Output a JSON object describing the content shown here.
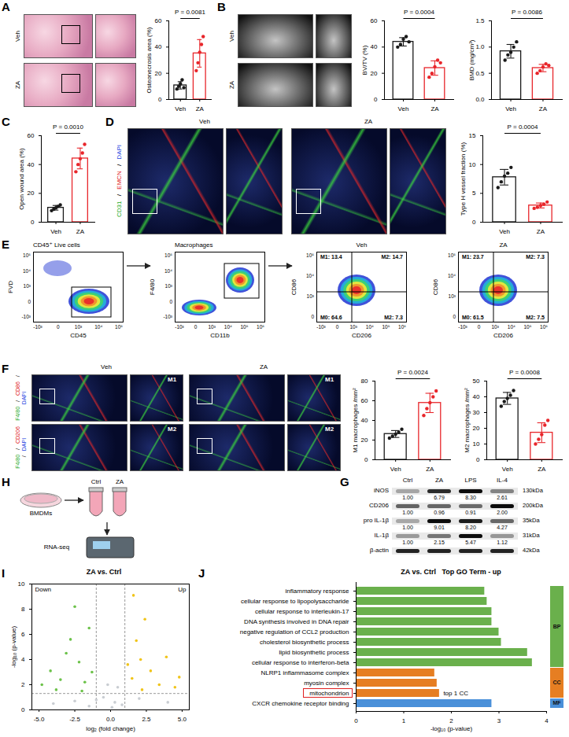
{
  "chart_data": [
    {
      "panel": "A",
      "type": "bar",
      "categories": [
        "Veh",
        "ZA"
      ],
      "values": [
        10.8,
        35.2
      ],
      "errors": [
        2.8,
        10.5
      ],
      "points": [
        [
          8,
          10,
          12,
          15,
          9
        ],
        [
          22,
          28,
          36,
          42,
          48
        ]
      ],
      "colors": [
        "#1a1a1a",
        "#e8262b"
      ],
      "ylabel": "Osteonecrosis area (%)",
      "ylim": [
        0,
        60
      ],
      "yticks": [
        0,
        20,
        40,
        60
      ],
      "annotations": [
        "P = 0.0081"
      ]
    },
    {
      "panel": "B",
      "type": "bar",
      "categories": [
        "Veh",
        "ZA"
      ],
      "values": [
        44,
        24
      ],
      "errors": [
        3.2,
        5.5
      ],
      "points": [
        [
          40,
          42,
          46,
          48,
          44
        ],
        [
          17,
          20,
          25,
          30,
          28
        ]
      ],
      "colors": [
        "#1a1a1a",
        "#e8262b"
      ],
      "ylabel": "BV/TV (%)",
      "ylim": [
        0,
        60
      ],
      "yticks": [
        0,
        20,
        40,
        60
      ],
      "annotations": [
        "P = 0.0004"
      ]
    },
    {
      "panel": "B",
      "type": "bar",
      "categories": [
        "Veh",
        "ZA"
      ],
      "values": [
        0.92,
        0.6
      ],
      "errors": [
        0.13,
        0.07
      ],
      "points": [
        [
          0.75,
          0.85,
          0.9,
          1.0,
          1.1
        ],
        [
          0.5,
          0.55,
          0.62,
          0.68,
          0.65
        ]
      ],
      "colors": [
        "#1a1a1a",
        "#e8262b"
      ],
      "ylabel": "BMD (mg/cm³)",
      "ylim": [
        0,
        1.5
      ],
      "yticks": [
        {
          "value": 0,
          "label": "0.0"
        },
        {
          "value": 0.5,
          "label": "0.5"
        },
        {
          "value": 1,
          "label": "1.0"
        },
        {
          "value": 1.5,
          "label": "1.5"
        }
      ],
      "annotations": [
        "P = 0.0086"
      ]
    },
    {
      "panel": "C",
      "type": "bar",
      "categories": [
        "Veh",
        "ZA"
      ],
      "values": [
        10,
        44.2
      ],
      "errors": [
        1.6,
        7.2
      ],
      "points": [
        [
          8,
          9,
          10,
          11,
          12
        ],
        [
          35,
          40,
          44,
          48,
          54
        ]
      ],
      "colors": [
        "#1a1a1a",
        "#e8262b"
      ],
      "ylabel": "Open wound area (%)",
      "ylim": [
        0,
        60
      ],
      "yticks": [
        0,
        20,
        40,
        60
      ],
      "annotations": [
        "P = 0.0010"
      ]
    },
    {
      "panel": "D",
      "type": "bar",
      "categories": [
        "Veh",
        "ZA"
      ],
      "values": [
        7.8,
        2.9
      ],
      "errors": [
        1.35,
        0.43
      ],
      "points": [
        [
          6,
          7,
          8,
          8.5,
          9.5
        ],
        [
          2.4,
          2.6,
          2.9,
          3.1,
          3.5
        ]
      ],
      "colors": [
        "#1a1a1a",
        "#e8262b"
      ],
      "ylabel": "Type H vessel fraction (%)",
      "ylim": [
        0,
        15
      ],
      "yticks": [
        0,
        5,
        10,
        15
      ],
      "annotations": [
        "P = 0.0004"
      ]
    },
    {
      "panel": "F",
      "type": "bar",
      "categories": [
        "Veh",
        "ZA"
      ],
      "values": [
        26.2,
        57.8
      ],
      "errors": [
        3.5,
        9.8
      ],
      "points": [
        [
          22,
          24,
          26,
          28,
          31
        ],
        [
          45,
          52,
          58,
          64,
          70
        ]
      ],
      "colors": [
        "#1a1a1a",
        "#e8262b"
      ],
      "ylabel": "M1 macrophages /mm²",
      "ylim": [
        0,
        80
      ],
      "yticks": [
        0,
        20,
        40,
        60,
        80
      ],
      "annotations": [
        "P = 0.0024"
      ]
    },
    {
      "panel": "F",
      "type": "bar",
      "categories": [
        "Veh",
        "ZA"
      ],
      "values": [
        39,
        17.2
      ],
      "errors": [
        3.8,
        6.3
      ],
      "points": [
        [
          34,
          37,
          39,
          41,
          44
        ],
        [
          10,
          13,
          16,
          22,
          25
        ]
      ],
      "colors": [
        "#1a1a1a",
        "#e8262b"
      ],
      "ylabel": "M2 macrophages /mm²",
      "ylim": [
        0,
        50
      ],
      "yticks": [
        0,
        10,
        20,
        30,
        40,
        50
      ],
      "annotations": [
        "P = 0.0008"
      ]
    },
    {
      "panel": "I",
      "type": "scatter",
      "title": "ZA vs. Ctrl",
      "xlabel": "log₂ (fold change)",
      "ylabel": "-log₁₀ (p-value)",
      "xlim": [
        -5.5,
        5.5
      ],
      "xticks": [
        {
          "value": -5,
          "label": "-5.0"
        },
        {
          "value": -2.5,
          "label": "-2.5"
        },
        {
          "value": 0,
          "label": "0.0"
        },
        {
          "value": 2.5,
          "label": "2.5"
        },
        {
          "value": 5,
          "label": "5.0"
        }
      ],
      "ylim": [
        0,
        10
      ],
      "yticks": [
        0,
        2,
        4,
        6,
        8,
        10
      ],
      "series": [
        {
          "name": "Down",
          "color": "#6cc24a",
          "x": [
            -4.2,
            -3.5,
            -2.8,
            -2.2,
            -1.8,
            -3.1,
            -4.8,
            -1.5,
            -2.5,
            -3.8,
            -2.0,
            -1.3
          ],
          "y": [
            3.1,
            2.4,
            5.6,
            3.8,
            2.2,
            4.5,
            2.0,
            6.5,
            8.2,
            1.6,
            1.5,
            3.0
          ]
        },
        {
          "name": "Up",
          "color": "#f0c419",
          "x": [
            1.5,
            2.1,
            2.8,
            3.4,
            4.5,
            1.8,
            2.4,
            1.2,
            3.9,
            2.2,
            4.8,
            1.6
          ],
          "y": [
            2.5,
            4.0,
            3.1,
            2.0,
            1.8,
            5.5,
            7.2,
            3.6,
            4.2,
            1.6,
            2.6,
            9.1
          ]
        }
      ],
      "background_points": {
        "color": "#c9cdd2",
        "x": [
          -0.5,
          0.3,
          -1.0,
          0.8,
          -2.5,
          2.0,
          -0.2,
          0.5,
          -4.0,
          4.0,
          0.1,
          -1.5
        ],
        "y": [
          1.0,
          0.6,
          0.8,
          0.4,
          0.7,
          0.9,
          2.0,
          1.8,
          0.5,
          0.6,
          0.2,
          0.3
        ]
      },
      "thresholds": {
        "x": [
          -1,
          1
        ],
        "y": [
          1.3
        ]
      }
    },
    {
      "panel": "J",
      "type": "bar",
      "orientation": "horizontal",
      "title": "ZA vs. Ctrl   Top GO Term - up",
      "xlabel": "-log₁₀ (p-value)",
      "xlim": [
        0,
        4
      ],
      "xticks": [
        0,
        1,
        2,
        3,
        4
      ],
      "categories": [
        "inflammatory response",
        "cellular response to lipopolysaccharide",
        "cellular response to interleukin-17",
        "DNA synthesis involved in DNA repair",
        "negative regulation of CCL2 production",
        "cholesterol biosynthetic process",
        "lipid biosynthetic process",
        "cellular response to interferon-beta",
        "NLRP1 inflammasome complex",
        "myosin complex",
        "mitochondrion",
        "CXCR chemokine receptor binding"
      ],
      "values": [
        2.7,
        2.75,
        2.85,
        2.85,
        3.0,
        3.05,
        3.6,
        3.7,
        1.65,
        1.7,
        1.75,
        2.85
      ],
      "groups": [
        {
          "name": "BP",
          "color": "#6ab04c",
          "categories": [
            "inflammatory response",
            "cellular response to lipopolysaccharide",
            "cellular response to interleukin-17",
            "DNA synthesis involved in DNA repair",
            "negative regulation of CCL2 production",
            "cholesterol biosynthetic process",
            "lipid biosynthetic process",
            "cellular response to interferon-beta"
          ]
        },
        {
          "name": "CC",
          "color": "#e67e22",
          "categories": [
            "NLRP1 inflammasome complex",
            "myosin complex",
            "mitochondrion"
          ]
        },
        {
          "name": "MF",
          "color": "#4a90d9",
          "categories": [
            "CXCR chemokine receptor binding"
          ]
        }
      ],
      "annotations": [
        {
          "text": "top 1 CC",
          "category": "mitochondrion"
        }
      ]
    }
  ],
  "figure": {
    "panel_labels": [
      "A",
      "B",
      "C",
      "D",
      "E",
      "F",
      "G",
      "H",
      "I",
      "J"
    ],
    "A": {
      "rows": [
        "Veh",
        "ZA"
      ]
    },
    "B": {
      "rows": [
        "Veh",
        "ZA"
      ]
    },
    "D": {
      "columns": [
        "Veh",
        "ZA"
      ],
      "stain": [
        {
          "text": "CD31",
          "color": "#22a822"
        },
        {
          "text": "/",
          "color": "#000000"
        },
        {
          "text": "EMCN",
          "color": "#e02020"
        },
        {
          "text": "/",
          "color": "#000000"
        },
        {
          "text": "DAPI",
          "color": "#2040e0"
        }
      ]
    },
    "E": {
      "plots": [
        {
          "title": "CD45⁺ Live cells",
          "xlabel": "CD45",
          "ylabel": "FVD",
          "xticks": [
            "-10³",
            "0",
            "10³",
            "10⁴",
            "10⁵"
          ],
          "yticks": [
            "-10³",
            "0",
            "10³",
            "10⁴",
            "10⁵"
          ]
        },
        {
          "title": "Macrophages",
          "xlabel": "CD11b",
          "ylabel": "F4/80",
          "xticks": [
            "-10³",
            "0",
            "10³",
            "10⁴",
            "10⁵",
            "10⁶"
          ],
          "yticks": [
            "-10³",
            "0",
            "10³",
            "10⁴",
            "10⁵"
          ]
        },
        {
          "title": "Veh",
          "xlabel": "CD206",
          "ylabel": "CD86",
          "xticks": [
            "-10³",
            "0",
            "10³",
            "10⁴",
            "10⁵",
            "10⁶"
          ],
          "yticks": [
            "0",
            "10³",
            "10⁴",
            "10⁵"
          ],
          "quadrants": [
            "M1: 13.4",
            "M2: 14.7",
            "M0: 64.6",
            "M2: 7.3"
          ]
        },
        {
          "title": "ZA",
          "xlabel": "CD206",
          "ylabel": "CD86",
          "xticks": [
            "-10³",
            "0",
            "10³",
            "10⁴",
            "10⁵",
            "10⁶"
          ],
          "yticks": [
            "0",
            "10³",
            "10⁴",
            "10⁵"
          ],
          "quadrants": [
            "M1: 23.7",
            "M2: 7.3",
            "M0: 61.5",
            "M2: 7.5"
          ]
        }
      ]
    },
    "F": {
      "columns": [
        "Veh",
        "ZA"
      ],
      "rows": [
        {
          "tag": "M1",
          "stain": [
            {
              "text": "F4/80",
              "color": "#22a822"
            },
            {
              "text": "/",
              "color": "#000000"
            },
            {
              "text": "CD86",
              "color": "#e02020"
            },
            {
              "text": "/",
              "color": "#000000"
            },
            {
              "text": "DAPI",
              "color": "#2040e0"
            }
          ]
        },
        {
          "tag": "M2",
          "stain": [
            {
              "text": "F4/80",
              "color": "#22a822"
            },
            {
              "text": "/",
              "color": "#000000"
            },
            {
              "text": "CD206",
              "color": "#e02020"
            },
            {
              "text": "/",
              "color": "#000000"
            },
            {
              "text": "DAPI",
              "color": "#2040e0"
            }
          ]
        }
      ]
    },
    "G": {
      "columns": [
        "Ctrl",
        "ZA",
        "LPS",
        "IL-4"
      ],
      "rows": [
        {
          "name": "iNOS",
          "values": [
            "1.00",
            "6.79",
            "8.30",
            "2.61"
          ],
          "size": "130kDa"
        },
        {
          "name": "CD206",
          "values": [
            "1.00",
            "0.96",
            "0.91",
            "2.00"
          ],
          "size": "200kDa"
        },
        {
          "name": "pro IL-1β",
          "values": [
            "1.00",
            "9.01",
            "8.20",
            "4.27"
          ],
          "size": "35kDa"
        },
        {
          "name": "IL-1β",
          "values": [
            "1.00",
            "2.15",
            "5.47",
            "1.12"
          ],
          "size": "31kDa"
        },
        {
          "name": "β-actin",
          "size": "42kDa"
        }
      ]
    },
    "H": {
      "source": "BMDMs",
      "groups": [
        "Ctrl",
        "ZA"
      ],
      "output": "RNA-seq"
    }
  }
}
